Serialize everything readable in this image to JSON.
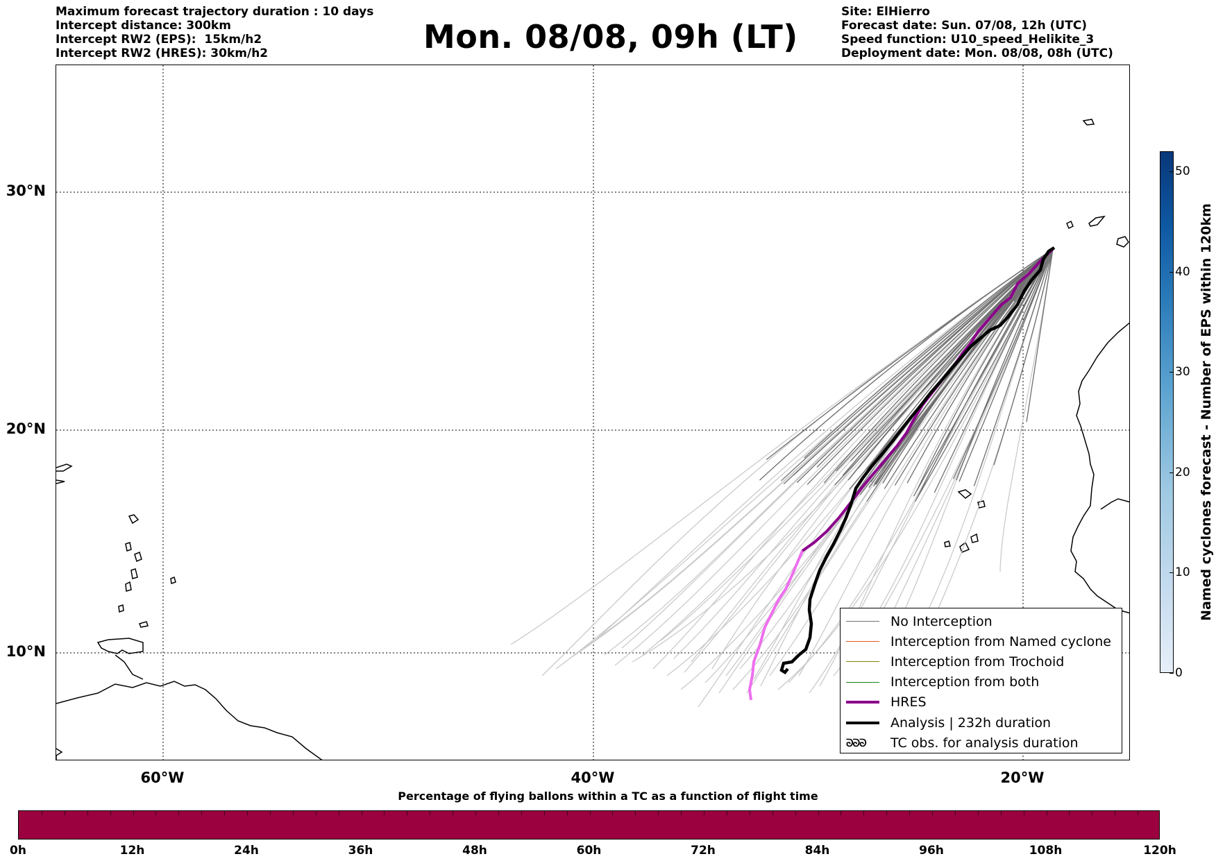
{
  "header": {
    "left_lines": [
      "Maximum forecast trajectory duration : 10 days",
      "Intercept distance: 300km",
      "Intercept RW2 (EPS):  15km/h2",
      "Intercept RW2 (HRES): 30km/h2"
    ],
    "title": "Mon. 08/08, 09h (LT)",
    "right_lines": [
      "Site: ElHierro",
      "Forecast date: Sun. 07/08, 12h (UTC)",
      "Speed function: U10_speed_Helikite_3",
      "Deployment date: Mon. 08/08, 08h (UTC)"
    ]
  },
  "map": {
    "lat_labels": [
      "30°N",
      "20°N",
      "10°N"
    ],
    "lon_labels": [
      "60°W",
      "40°W",
      "20°W"
    ],
    "colors": {
      "no_interception": "#6e6e6e",
      "early_trajectory": "#c8c8c8",
      "hres": "#8b008b",
      "hres_early": "#ee6fee",
      "analysis": "#000000",
      "coast": "#000000"
    }
  },
  "legend": {
    "items": [
      {
        "label": "No Interception",
        "color": "#6e6e6e",
        "width": 1
      },
      {
        "label": "Interception from Named cyclone",
        "color": "#e8571e",
        "width": 1
      },
      {
        "label": "Interception from Trochoid",
        "color": "#808000",
        "width": 1
      },
      {
        "label": "Interception from both",
        "color": "#1a7f1a",
        "width": 1
      },
      {
        "label": "HRES",
        "color": "#8b008b",
        "width": 4
      },
      {
        "label": "Analysis | 232h duration",
        "color": "#000000",
        "width": 4
      },
      {
        "label": "TC obs. for analysis duration",
        "color": "#000000",
        "symbol": "ᘐᘐᘐ"
      }
    ]
  },
  "colorbar_vertical": {
    "label": "Named cyclones forecast - Number of EPS within 120km",
    "ticks": [
      "0",
      "10",
      "20",
      "30",
      "40",
      "50"
    ],
    "range": [
      0,
      52
    ]
  },
  "colorbar_horizontal": {
    "title": "Percentage of flying ballons within a TC as a function of flight time",
    "ticks": [
      "0h",
      "12h",
      "24h",
      "36h",
      "48h",
      "60h",
      "72h",
      "84h",
      "96h",
      "108h",
      "120h"
    ],
    "color": "#9b003f",
    "value_percent": 100
  }
}
